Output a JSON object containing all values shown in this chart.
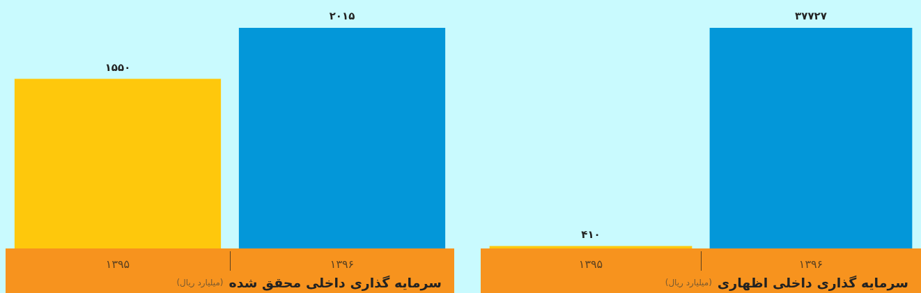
{
  "chart_data": [
    {
      "type": "bar",
      "title": "سرمایه گذاری داخلی محقق شده",
      "subtitle": "(میلیارد ریال)",
      "categories": [
        "۱۳۹۵",
        "۱۳۹۶"
      ],
      "values": [
        1550,
        2015
      ],
      "colors": [
        "#fec80c",
        "#0397d9"
      ],
      "value_labels": [
        "۱۵۵۰",
        "۲۰۱۵"
      ],
      "tick_labels": "x"
    },
    {
      "type": "bar",
      "title": "سرمایه گذاری داخلی اظهاری",
      "subtitle": "(میلیارد ریال)",
      "categories": [
        "۱۳۹۵",
        "۱۳۹۶"
      ],
      "values": [
        410,
        37727
      ],
      "colors": [
        "#fec80c",
        "#0397d9"
      ],
      "value_labels": [
        "۴۱۰",
        "۳۷۷۲۷"
      ],
      "tick_labels": "x"
    }
  ]
}
